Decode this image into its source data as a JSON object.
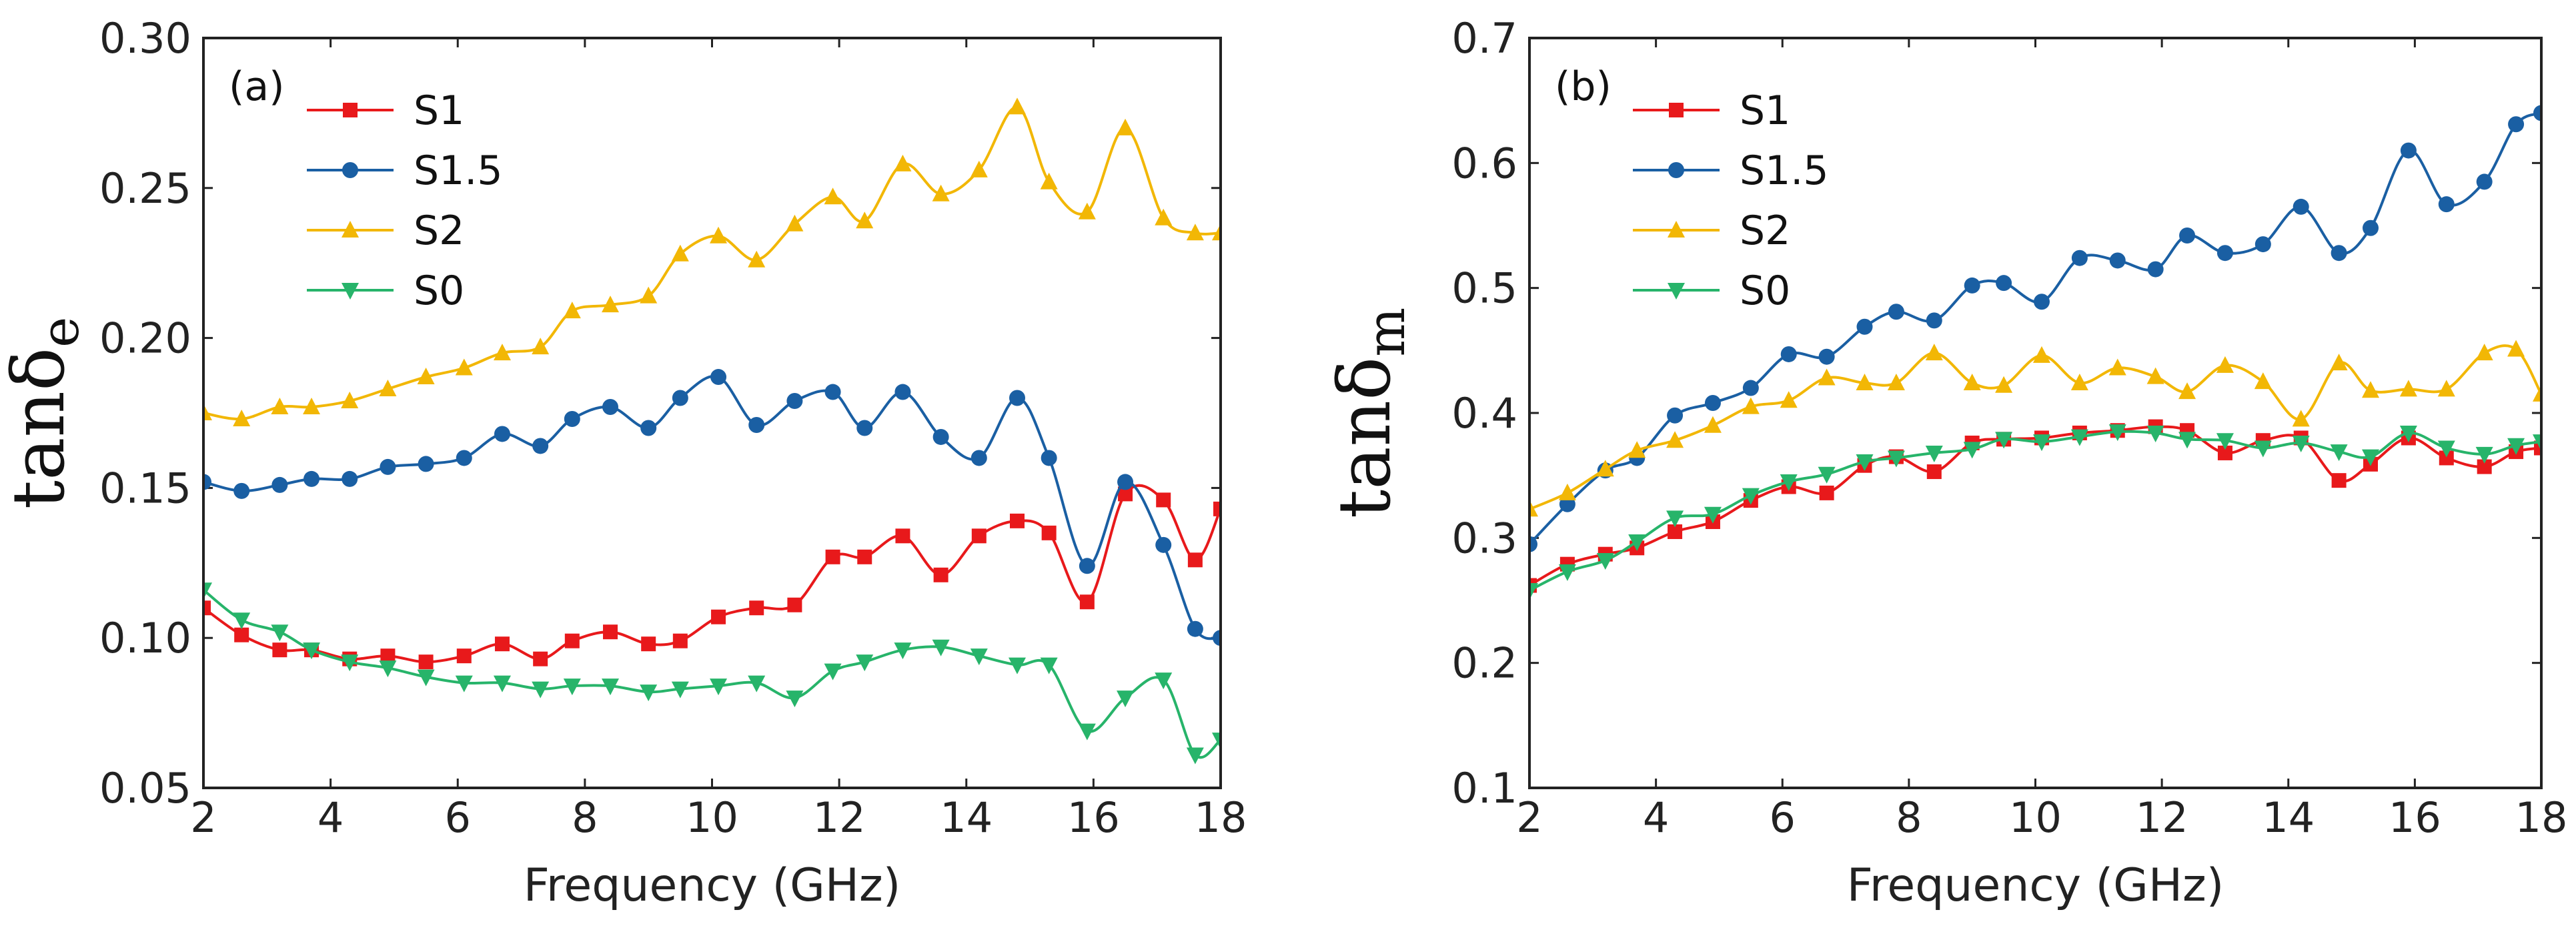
{
  "chart_data": [
    {
      "type": "line",
      "panel": "(a)",
      "xlabel": "Frequency  (GHz)",
      "ylabel": {
        "main": "tanδ",
        "sub": "e"
      },
      "xlim": [
        2,
        18
      ],
      "ylim": [
        0.05,
        0.3
      ],
      "xticks": [
        "2",
        "4",
        "6",
        "8",
        "10",
        "12",
        "14",
        "16",
        "18"
      ],
      "yticks": [
        "0.05",
        "0.10",
        "0.15",
        "0.20",
        "0.25",
        "0.30"
      ],
      "legend_position": "top-left",
      "series": [
        {
          "name": "S1",
          "color": "#e8191b",
          "marker": "square",
          "x": [
            2.0,
            2.6,
            3.2,
            3.7,
            4.3,
            4.9,
            5.5,
            6.1,
            6.7,
            7.3,
            7.8,
            8.4,
            9.0,
            9.5,
            10.1,
            10.7,
            11.3,
            11.9,
            12.4,
            13.0,
            13.6,
            14.2,
            14.8,
            15.3,
            15.9,
            16.5,
            17.1,
            17.6,
            18.0
          ],
          "y": [
            0.11,
            0.101,
            0.096,
            0.096,
            0.093,
            0.094,
            0.092,
            0.094,
            0.098,
            0.093,
            0.099,
            0.102,
            0.098,
            0.099,
            0.107,
            0.11,
            0.111,
            0.127,
            0.127,
            0.134,
            0.121,
            0.134,
            0.139,
            0.135,
            0.112,
            0.148,
            0.146,
            0.126,
            0.143
          ]
        },
        {
          "name": "S1.5",
          "color": "#1a5fa3",
          "marker": "circle",
          "x": [
            2.0,
            2.6,
            3.2,
            3.7,
            4.3,
            4.9,
            5.5,
            6.1,
            6.7,
            7.3,
            7.8,
            8.4,
            9.0,
            9.5,
            10.1,
            10.7,
            11.3,
            11.9,
            12.4,
            13.0,
            13.6,
            14.2,
            14.8,
            15.3,
            15.9,
            16.5,
            17.1,
            17.6,
            18.0
          ],
          "y": [
            0.152,
            0.149,
            0.151,
            0.153,
            0.153,
            0.157,
            0.158,
            0.16,
            0.168,
            0.164,
            0.173,
            0.177,
            0.17,
            0.18,
            0.187,
            0.171,
            0.179,
            0.182,
            0.17,
            0.182,
            0.167,
            0.16,
            0.18,
            0.16,
            0.124,
            0.152,
            0.131,
            0.103,
            0.1
          ]
        },
        {
          "name": "S2",
          "color": "#f2b705",
          "marker": "triangle-up",
          "x": [
            2.0,
            2.6,
            3.2,
            3.7,
            4.3,
            4.9,
            5.5,
            6.1,
            6.7,
            7.3,
            7.8,
            8.4,
            9.0,
            9.5,
            10.1,
            10.7,
            11.3,
            11.9,
            12.4,
            13.0,
            13.6,
            14.2,
            14.8,
            15.3,
            15.9,
            16.5,
            17.1,
            17.6,
            18.0
          ],
          "y": [
            0.175,
            0.173,
            0.177,
            0.177,
            0.179,
            0.183,
            0.187,
            0.19,
            0.195,
            0.197,
            0.209,
            0.211,
            0.214,
            0.228,
            0.234,
            0.226,
            0.238,
            0.247,
            0.239,
            0.258,
            0.248,
            0.256,
            0.277,
            0.252,
            0.242,
            0.27,
            0.24,
            0.235,
            0.235
          ]
        },
        {
          "name": "S0",
          "color": "#27b46a",
          "marker": "triangle-down",
          "x": [
            2.0,
            2.6,
            3.2,
            3.7,
            4.3,
            4.9,
            5.5,
            6.1,
            6.7,
            7.3,
            7.8,
            8.4,
            9.0,
            9.5,
            10.1,
            10.7,
            11.3,
            11.9,
            12.4,
            13.0,
            13.6,
            14.2,
            14.8,
            15.3,
            15.9,
            16.5,
            17.1,
            17.6,
            18.0
          ],
          "y": [
            0.116,
            0.106,
            0.102,
            0.096,
            0.092,
            0.09,
            0.087,
            0.085,
            0.085,
            0.083,
            0.084,
            0.084,
            0.082,
            0.083,
            0.084,
            0.085,
            0.08,
            0.089,
            0.092,
            0.096,
            0.097,
            0.094,
            0.091,
            0.091,
            0.069,
            0.08,
            0.086,
            0.061,
            0.066
          ]
        }
      ]
    },
    {
      "type": "line",
      "panel": "(b)",
      "xlabel": "Frequency  (GHz)",
      "ylabel": {
        "main": "tanδ",
        "sub": "m"
      },
      "xlim": [
        2,
        18
      ],
      "ylim": [
        0.1,
        0.7
      ],
      "xticks": [
        "2",
        "4",
        "6",
        "8",
        "10",
        "12",
        "14",
        "16",
        "18"
      ],
      "yticks": [
        "0.1",
        "0.2",
        "0.3",
        "0.4",
        "0.5",
        "0.6",
        "0.7"
      ],
      "legend_position": "top-left",
      "series": [
        {
          "name": "S1",
          "color": "#e8191b",
          "marker": "square",
          "x": [
            2.0,
            2.6,
            3.2,
            3.7,
            4.3,
            4.9,
            5.5,
            6.1,
            6.7,
            7.3,
            7.8,
            8.4,
            9.0,
            9.5,
            10.1,
            10.7,
            11.3,
            11.9,
            12.4,
            13.0,
            13.6,
            14.2,
            14.8,
            15.3,
            15.9,
            16.5,
            17.1,
            17.6,
            18.0
          ],
          "y": [
            0.262,
            0.279,
            0.287,
            0.292,
            0.305,
            0.313,
            0.33,
            0.341,
            0.336,
            0.358,
            0.365,
            0.353,
            0.376,
            0.379,
            0.38,
            0.384,
            0.386,
            0.389,
            0.386,
            0.368,
            0.378,
            0.38,
            0.346,
            0.359,
            0.38,
            0.364,
            0.357,
            0.369,
            0.372
          ]
        },
        {
          "name": "S1.5",
          "color": "#1a5fa3",
          "marker": "circle",
          "x": [
            2.0,
            2.6,
            3.2,
            3.7,
            4.3,
            4.9,
            5.5,
            6.1,
            6.7,
            7.3,
            7.8,
            8.4,
            9.0,
            9.5,
            10.1,
            10.7,
            11.3,
            11.9,
            12.4,
            13.0,
            13.6,
            14.2,
            14.8,
            15.3,
            15.9,
            16.5,
            17.1,
            17.6,
            18.0
          ],
          "y": [
            0.295,
            0.327,
            0.354,
            0.364,
            0.398,
            0.408,
            0.42,
            0.447,
            0.445,
            0.469,
            0.481,
            0.474,
            0.502,
            0.504,
            0.489,
            0.524,
            0.522,
            0.515,
            0.542,
            0.528,
            0.535,
            0.565,
            0.528,
            0.548,
            0.61,
            0.567,
            0.585,
            0.631,
            0.64
          ]
        },
        {
          "name": "S2",
          "color": "#f2b705",
          "marker": "triangle-up",
          "x": [
            2.0,
            2.6,
            3.2,
            3.7,
            4.3,
            4.9,
            5.5,
            6.1,
            6.7,
            7.3,
            7.8,
            8.4,
            9.0,
            9.5,
            10.1,
            10.7,
            11.3,
            11.9,
            12.4,
            13.0,
            13.6,
            14.2,
            14.8,
            15.3,
            15.9,
            16.5,
            17.1,
            17.6,
            18.0
          ],
          "y": [
            0.323,
            0.336,
            0.355,
            0.37,
            0.378,
            0.39,
            0.405,
            0.41,
            0.428,
            0.424,
            0.424,
            0.448,
            0.424,
            0.422,
            0.446,
            0.424,
            0.436,
            0.429,
            0.417,
            0.438,
            0.425,
            0.395,
            0.44,
            0.418,
            0.419,
            0.419,
            0.448,
            0.451,
            0.415
          ]
        },
        {
          "name": "S0",
          "color": "#27b46a",
          "marker": "triangle-down",
          "x": [
            2.0,
            2.6,
            3.2,
            3.7,
            4.3,
            4.9,
            5.5,
            6.1,
            6.7,
            7.3,
            7.8,
            8.4,
            9.0,
            9.5,
            10.1,
            10.7,
            11.3,
            11.9,
            12.4,
            13.0,
            13.6,
            14.2,
            14.8,
            15.3,
            15.9,
            16.5,
            17.1,
            17.6,
            18.0
          ],
          "y": [
            0.258,
            0.273,
            0.282,
            0.297,
            0.316,
            0.319,
            0.334,
            0.345,
            0.351,
            0.361,
            0.364,
            0.368,
            0.371,
            0.379,
            0.377,
            0.381,
            0.385,
            0.384,
            0.379,
            0.378,
            0.372,
            0.376,
            0.369,
            0.365,
            0.384,
            0.372,
            0.367,
            0.374,
            0.377
          ]
        }
      ]
    }
  ]
}
